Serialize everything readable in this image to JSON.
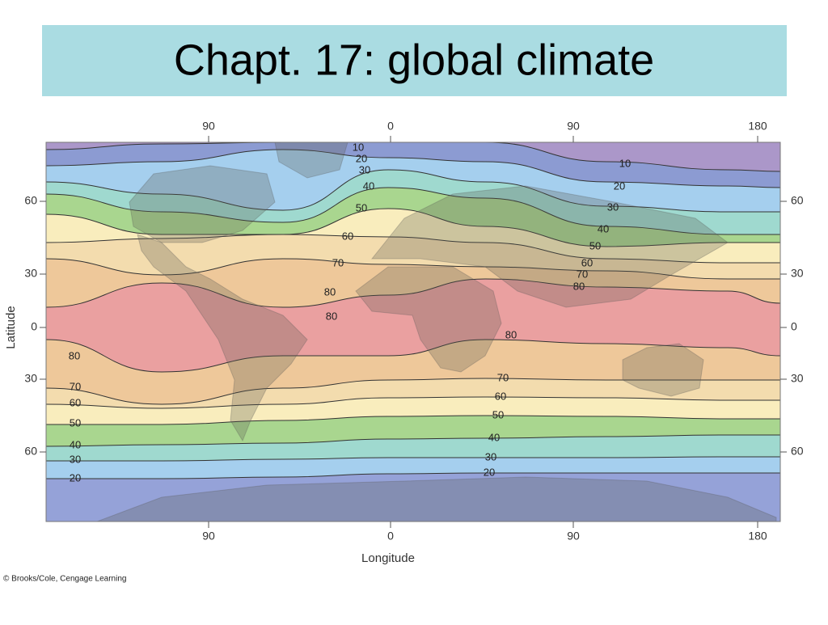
{
  "title": "Chapt. 17: global climate",
  "map": {
    "top_ticks": [
      "90",
      "0",
      "90",
      "180"
    ],
    "bottom_ticks": [
      "90",
      "0",
      "90",
      "180"
    ],
    "left_ticks": [
      "60",
      "30",
      "0",
      "30",
      "60"
    ],
    "right_ticks": [
      "60",
      "30",
      "0",
      "30",
      "60"
    ],
    "x_label": "Longitude",
    "y_label": "Latitude",
    "contour_labels": [
      "10",
      "20",
      "30",
      "40",
      "50",
      "60",
      "70",
      "80",
      "80",
      "10",
      "20",
      "30",
      "40",
      "50",
      "60",
      "70",
      "80",
      "80",
      "70",
      "60",
      "50",
      "40",
      "30",
      "20",
      "80",
      "70",
      "60",
      "50",
      "40",
      "30",
      "20"
    ]
  },
  "credit": "© Brooks/Cole, Cengage Learning"
}
